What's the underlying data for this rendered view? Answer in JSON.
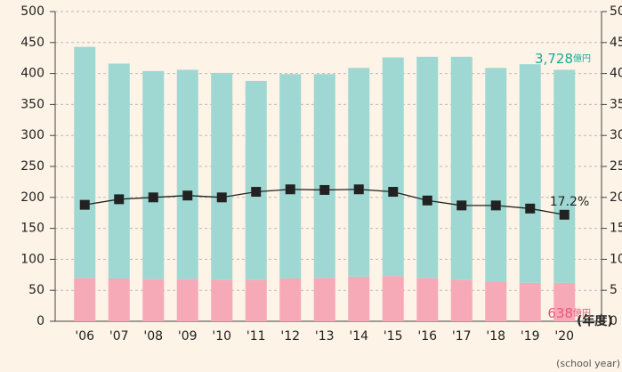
{
  "chart_data": {
    "type": "bar",
    "categories": [
      "'06",
      "'07",
      "'08",
      "'09",
      "'10",
      "'11",
      "'12",
      "'13",
      "'14",
      "'15",
      "'16",
      "'17",
      "'18",
      "'19",
      "'20"
    ],
    "series": [
      {
        "color": "#f6aab8",
        "values": [
          70,
          69,
          68,
          68,
          67,
          67,
          69,
          70,
          72,
          73,
          70,
          67,
          64,
          62,
          62
        ]
      },
      {
        "color": "#9fd8d2",
        "values": [
          373,
          347,
          336,
          338,
          334,
          321,
          330,
          329,
          337,
          353,
          357,
          360,
          345,
          353,
          344
        ]
      },
      {
        "type": "line",
        "axis": "y2",
        "color": "#222222",
        "values": [
          18.8,
          19.7,
          20.0,
          20.3,
          20.0,
          20.9,
          21.3,
          21.2,
          21.3,
          20.9,
          19.5,
          18.7,
          18.7,
          18.2,
          17.2
        ]
      }
    ],
    "ylim": [
      0,
      500
    ],
    "yticks": [
      0,
      50,
      100,
      150,
      200,
      250,
      300,
      350,
      400,
      450,
      500
    ],
    "y2lim": [
      0,
      50
    ],
    "y2ticks": [
      0,
      5,
      10,
      15,
      20,
      25,
      30,
      35,
      40,
      45,
      50
    ],
    "grid": true,
    "x_label": "(年度)",
    "x_sublabel": "(school year)",
    "annotations": {
      "top_value": "3,728",
      "top_unit": "億円",
      "bottom_value": "638",
      "bottom_unit": "億円",
      "line_value": "17.2%"
    }
  }
}
